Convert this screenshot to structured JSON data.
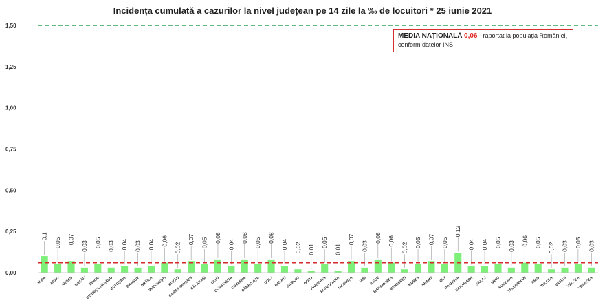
{
  "title": "Incidența cumulată a cazurilor la nivel județean pe 14 zile la ‰ de locuitori *  25 iunie 2021",
  "legend": {
    "lead": "MEDIA NAȚIONALĂ",
    "value": "0,06",
    "dash": " - ",
    "text1": "raportat la populația României,",
    "text2": "conform datelor INS"
  },
  "colors": {
    "bar": "#7ef07a",
    "bar_dark": "#3fcf45",
    "mean_line": "#d62b2b",
    "threshold_line": "#2fa35a",
    "grid": "#e6e6e6"
  },
  "chart_data": {
    "type": "bar",
    "ylim": [
      0,
      1.5
    ],
    "yticks": [
      "0,00",
      "0,25",
      "0,50",
      "0,75",
      "1,00",
      "1,25",
      "1,50"
    ],
    "ytick_values": [
      0,
      0.25,
      0.5,
      0.75,
      1.0,
      1.25,
      1.5
    ],
    "threshold": 1.5,
    "mean": 0.06,
    "categories": [
      "ALBA",
      "ARAD",
      "ARGEȘ",
      "BACĂU",
      "BIHOR",
      "BISTRIȚA-NĂSĂUD",
      "BOTOȘANI",
      "BRAȘOV",
      "BRĂILA",
      "BUCUREȘTI",
      "BUZĂU",
      "CARAȘ-SEVERIN",
      "CĂLĂRAȘI",
      "CLUJ",
      "CONSTANȚA",
      "COVASNA",
      "DÂMBOVIȚA",
      "DOLJ",
      "GALAȚI",
      "GIURGIU",
      "GORJ",
      "HARGHITA",
      "HUNEDOARA",
      "IALOMIȚA",
      "IAȘI",
      "ILFOV",
      "MARAMUREȘ",
      "MEHEDINȚI",
      "MUREȘ",
      "NEAMȚ",
      "OLT",
      "PRAHOVA",
      "SATU-MARE",
      "SĂLAJ",
      "SIBIU",
      "SUCEAVA",
      "TELEORMAN",
      "TIMIȘ",
      "TULCEA",
      "VASLUI",
      "VÂLCEA",
      "VRANCEA"
    ],
    "values": [
      0.1,
      0.05,
      0.07,
      0.03,
      0.05,
      0.03,
      0.04,
      0.03,
      0.04,
      0.06,
      0.02,
      0.07,
      0.05,
      0.08,
      0.04,
      0.08,
      0.05,
      0.08,
      0.04,
      0.02,
      0.01,
      0.05,
      0.01,
      0.07,
      0.03,
      0.08,
      0.06,
      0.02,
      0.05,
      0.07,
      0.05,
      0.12,
      0.04,
      0.04,
      0.05,
      0.03,
      0.06,
      0.05,
      0.02,
      0.03,
      0.05,
      0.03
    ],
    "labels": [
      "0,1",
      "0,05",
      "0,07",
      "0,03",
      "0,05",
      "0,03",
      "0,04",
      "0,03",
      "0,04",
      "0,06",
      "0,02",
      "0,07",
      "0,05",
      "0,08",
      "0,04",
      "0,08",
      "0,05",
      "0,08",
      "0,04",
      "0,02",
      "0,01",
      "0,05",
      "0,01",
      "0,07",
      "0,03",
      "0,08",
      "0,06",
      "0,02",
      "0,05",
      "0,07",
      "0,05",
      "0,12",
      "0,04",
      "0,04",
      "0,05",
      "0,03",
      "0,06",
      "0,05",
      "0,02",
      "0,03",
      "0,05",
      "0,03"
    ]
  }
}
